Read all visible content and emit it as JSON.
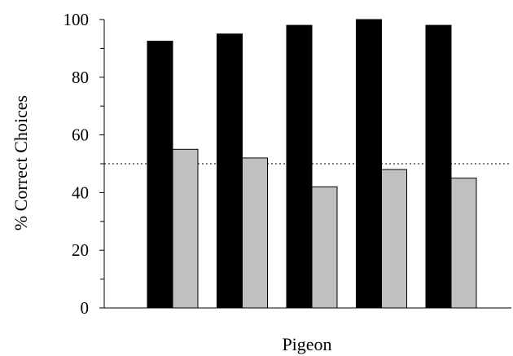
{
  "chart_data": {
    "type": "bar",
    "xlabel": "Pigeon",
    "ylabel": "% Correct Choices",
    "ylim": [
      0,
      100
    ],
    "yticks": [
      0,
      20,
      40,
      60,
      80,
      100
    ],
    "categories": [
      "",
      "",
      "",
      "",
      ""
    ],
    "series": [
      {
        "color": "#000000",
        "values": [
          92.5,
          95,
          98,
          100,
          98
        ]
      },
      {
        "color": "#c0c0c0",
        "values": [
          55,
          52,
          42,
          48,
          45
        ]
      }
    ],
    "reference_line": {
      "y": 50,
      "style": "dotted"
    },
    "grid": false,
    "legend": "none"
  }
}
